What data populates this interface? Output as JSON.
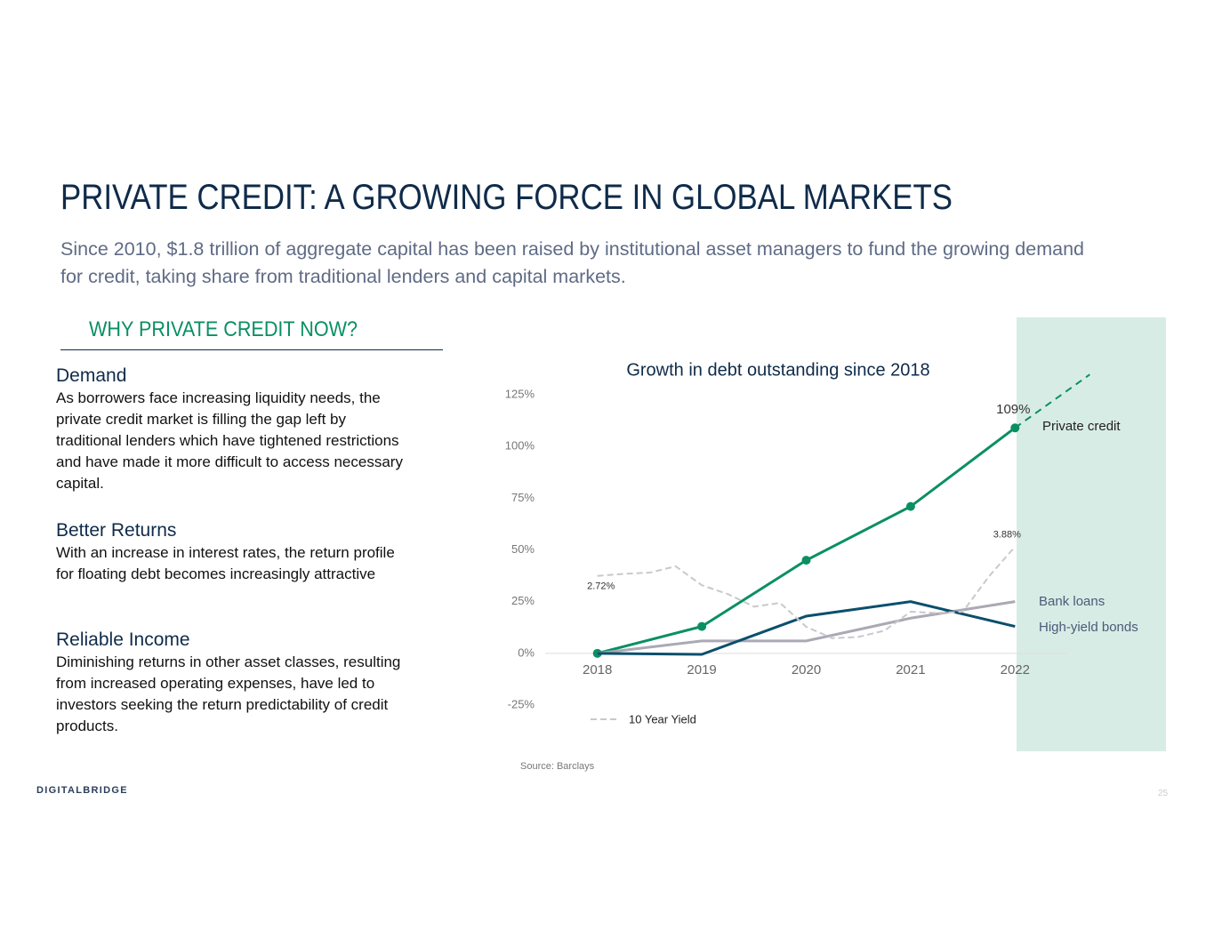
{
  "header": {
    "title": "PRIVATE CREDIT: A GROWING FORCE IN GLOBAL MARKETS",
    "subtitle": "Since 2010, $1.8 trillion of aggregate capital has been raised by institutional asset managers to fund the growing demand for credit, taking share from traditional lenders and capital markets."
  },
  "section": {
    "heading": "WHY PRIVATE CREDIT NOW?",
    "items": [
      {
        "heading": "Demand",
        "body": "As borrowers face increasing liquidity needs, the private credit market is filling the gap left by traditional lenders which have tightened restrictions and have made it more difficult to access necessary capital."
      },
      {
        "heading": "Better Returns",
        "body": "With an increase in interest rates, the return profile for floating debt becomes increasingly attractive"
      },
      {
        "heading": "Reliable Income",
        "body": "Diminishing returns in other asset classes, resulting from increased operating expenses, have led to investors seeking the return predictability of credit products."
      }
    ]
  },
  "chart_data": {
    "type": "line",
    "title": "Growth in debt outstanding since 2018",
    "x": [
      2018,
      2019,
      2020,
      2021,
      2022
    ],
    "xlim": [
      2017.5,
      2022.5
    ],
    "xticks": [
      2018,
      2019,
      2020,
      2021,
      2022
    ],
    "ylim": [
      -25,
      125
    ],
    "yticks": [
      {
        "value": -25,
        "label": "-25%"
      },
      {
        "value": 0,
        "label": "0%"
      },
      {
        "value": 25,
        "label": "25%"
      },
      {
        "value": 50,
        "label": "50%"
      },
      {
        "value": 75,
        "label": "75%"
      },
      {
        "value": 100,
        "label": "100%"
      },
      {
        "value": 125,
        "label": "125%"
      }
    ],
    "y2lim": [
      -2.4,
      9.9
    ],
    "series": [
      {
        "name": "Private credit",
        "color": "#0a8f63",
        "values": [
          0,
          13,
          45,
          71,
          109
        ],
        "value_labels": [
          null,
          null,
          null,
          null,
          "109%"
        ],
        "markers": true
      },
      {
        "name": "Bank loans",
        "color": "#aaa9b5",
        "values": [
          0,
          6,
          6,
          17,
          25
        ]
      },
      {
        "name": "High-yield bonds",
        "color": "#0b4f6c",
        "values": [
          0,
          -0.5,
          18,
          25,
          13
        ]
      },
      {
        "name": "10 Year Yield",
        "color": "#c9c9cc",
        "axis": "y2",
        "dashed": true,
        "legend": true,
        "x": [
          2018,
          2018.25,
          2018.5,
          2018.75,
          2019,
          2019.25,
          2019.5,
          2019.75,
          2020,
          2020.25,
          2020.5,
          2020.75,
          2021,
          2021.25,
          2021.5,
          2021.75,
          2022
        ],
        "values": [
          2.72,
          2.8,
          2.85,
          3.1,
          2.35,
          2.0,
          1.5,
          1.65,
          0.7,
          0.25,
          0.3,
          0.55,
          1.3,
          1.25,
          1.3,
          2.7,
          3.88
        ],
        "value_labels": [
          "2.72%",
          null,
          null,
          null,
          null,
          null,
          null,
          null,
          null,
          null,
          null,
          null,
          null,
          null,
          null,
          null,
          "3.88%"
        ]
      }
    ],
    "source": "Source: Barclays"
  },
  "footer": {
    "logo": "DIGITALBRIDGE",
    "page": "25"
  }
}
